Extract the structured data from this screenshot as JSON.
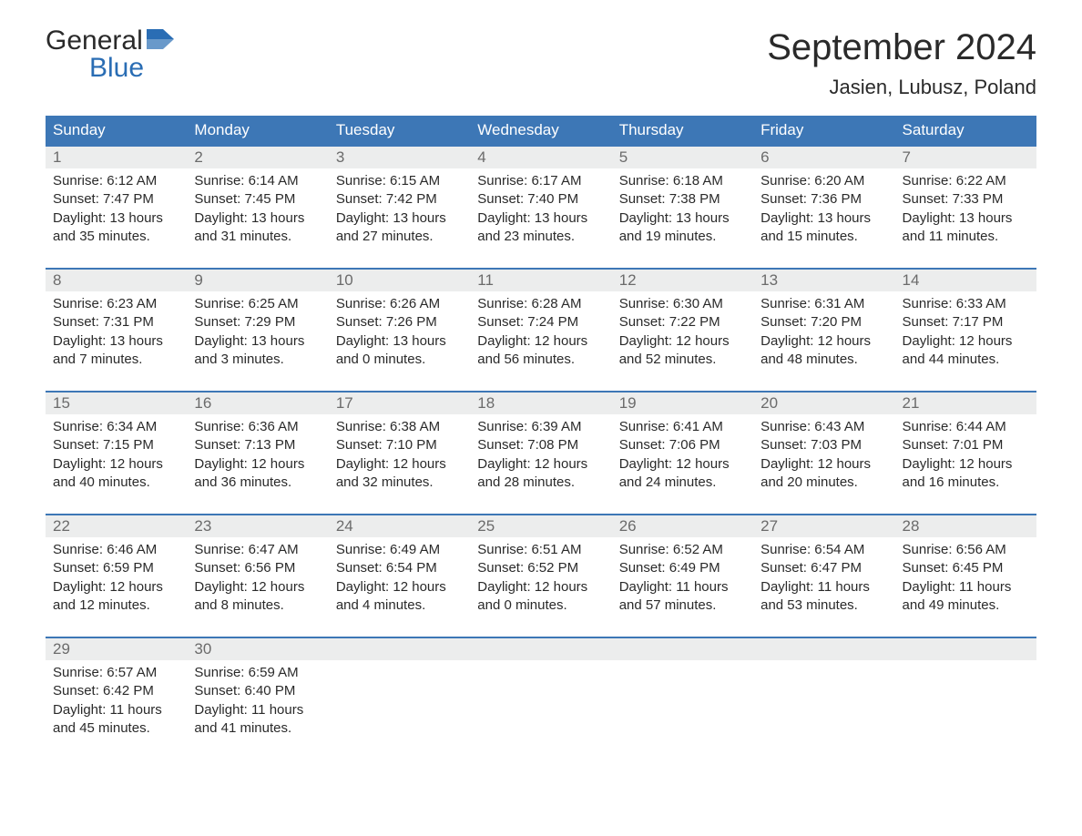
{
  "brand": {
    "line1": "General",
    "line2": "Blue"
  },
  "title": "September 2024",
  "location": "Jasien, Lubusz, Poland",
  "colors": {
    "header_bg": "#3d77b6",
    "header_text": "#ffffff",
    "daynum_bg": "#eceded",
    "daynum_text": "#6b6b6b",
    "border": "#3d77b6",
    "body_text": "#2a2a2a",
    "logo_blue": "#2a6db4",
    "background": "#ffffff"
  },
  "layout": {
    "type": "calendar",
    "columns": 7,
    "rows": 5,
    "title_fontsize": 40,
    "location_fontsize": 22,
    "th_fontsize": 17,
    "daynum_fontsize": 17,
    "data_fontsize": 15
  },
  "weekdays": [
    "Sunday",
    "Monday",
    "Tuesday",
    "Wednesday",
    "Thursday",
    "Friday",
    "Saturday"
  ],
  "days": [
    {
      "n": "1",
      "sunrise": "6:12 AM",
      "sunset": "7:47 PM",
      "day_h": 13,
      "day_m": 35
    },
    {
      "n": "2",
      "sunrise": "6:14 AM",
      "sunset": "7:45 PM",
      "day_h": 13,
      "day_m": 31
    },
    {
      "n": "3",
      "sunrise": "6:15 AM",
      "sunset": "7:42 PM",
      "day_h": 13,
      "day_m": 27
    },
    {
      "n": "4",
      "sunrise": "6:17 AM",
      "sunset": "7:40 PM",
      "day_h": 13,
      "day_m": 23
    },
    {
      "n": "5",
      "sunrise": "6:18 AM",
      "sunset": "7:38 PM",
      "day_h": 13,
      "day_m": 19
    },
    {
      "n": "6",
      "sunrise": "6:20 AM",
      "sunset": "7:36 PM",
      "day_h": 13,
      "day_m": 15
    },
    {
      "n": "7",
      "sunrise": "6:22 AM",
      "sunset": "7:33 PM",
      "day_h": 13,
      "day_m": 11
    },
    {
      "n": "8",
      "sunrise": "6:23 AM",
      "sunset": "7:31 PM",
      "day_h": 13,
      "day_m": 7
    },
    {
      "n": "9",
      "sunrise": "6:25 AM",
      "sunset": "7:29 PM",
      "day_h": 13,
      "day_m": 3
    },
    {
      "n": "10",
      "sunrise": "6:26 AM",
      "sunset": "7:26 PM",
      "day_h": 13,
      "day_m": 0
    },
    {
      "n": "11",
      "sunrise": "6:28 AM",
      "sunset": "7:24 PM",
      "day_h": 12,
      "day_m": 56
    },
    {
      "n": "12",
      "sunrise": "6:30 AM",
      "sunset": "7:22 PM",
      "day_h": 12,
      "day_m": 52
    },
    {
      "n": "13",
      "sunrise": "6:31 AM",
      "sunset": "7:20 PM",
      "day_h": 12,
      "day_m": 48
    },
    {
      "n": "14",
      "sunrise": "6:33 AM",
      "sunset": "7:17 PM",
      "day_h": 12,
      "day_m": 44
    },
    {
      "n": "15",
      "sunrise": "6:34 AM",
      "sunset": "7:15 PM",
      "day_h": 12,
      "day_m": 40
    },
    {
      "n": "16",
      "sunrise": "6:36 AM",
      "sunset": "7:13 PM",
      "day_h": 12,
      "day_m": 36
    },
    {
      "n": "17",
      "sunrise": "6:38 AM",
      "sunset": "7:10 PM",
      "day_h": 12,
      "day_m": 32
    },
    {
      "n": "18",
      "sunrise": "6:39 AM",
      "sunset": "7:08 PM",
      "day_h": 12,
      "day_m": 28
    },
    {
      "n": "19",
      "sunrise": "6:41 AM",
      "sunset": "7:06 PM",
      "day_h": 12,
      "day_m": 24
    },
    {
      "n": "20",
      "sunrise": "6:43 AM",
      "sunset": "7:03 PM",
      "day_h": 12,
      "day_m": 20
    },
    {
      "n": "21",
      "sunrise": "6:44 AM",
      "sunset": "7:01 PM",
      "day_h": 12,
      "day_m": 16
    },
    {
      "n": "22",
      "sunrise": "6:46 AM",
      "sunset": "6:59 PM",
      "day_h": 12,
      "day_m": 12
    },
    {
      "n": "23",
      "sunrise": "6:47 AM",
      "sunset": "6:56 PM",
      "day_h": 12,
      "day_m": 8
    },
    {
      "n": "24",
      "sunrise": "6:49 AM",
      "sunset": "6:54 PM",
      "day_h": 12,
      "day_m": 4
    },
    {
      "n": "25",
      "sunrise": "6:51 AM",
      "sunset": "6:52 PM",
      "day_h": 12,
      "day_m": 0
    },
    {
      "n": "26",
      "sunrise": "6:52 AM",
      "sunset": "6:49 PM",
      "day_h": 11,
      "day_m": 57
    },
    {
      "n": "27",
      "sunrise": "6:54 AM",
      "sunset": "6:47 PM",
      "day_h": 11,
      "day_m": 53
    },
    {
      "n": "28",
      "sunrise": "6:56 AM",
      "sunset": "6:45 PM",
      "day_h": 11,
      "day_m": 49
    },
    {
      "n": "29",
      "sunrise": "6:57 AM",
      "sunset": "6:42 PM",
      "day_h": 11,
      "day_m": 45
    },
    {
      "n": "30",
      "sunrise": "6:59 AM",
      "sunset": "6:40 PM",
      "day_h": 11,
      "day_m": 41
    }
  ],
  "labels": {
    "sunrise": "Sunrise: ",
    "sunset": "Sunset: ",
    "daylight_prefix": "Daylight: ",
    "hours_word": " hours",
    "and_word": "and ",
    "minutes_word": " minutes."
  }
}
